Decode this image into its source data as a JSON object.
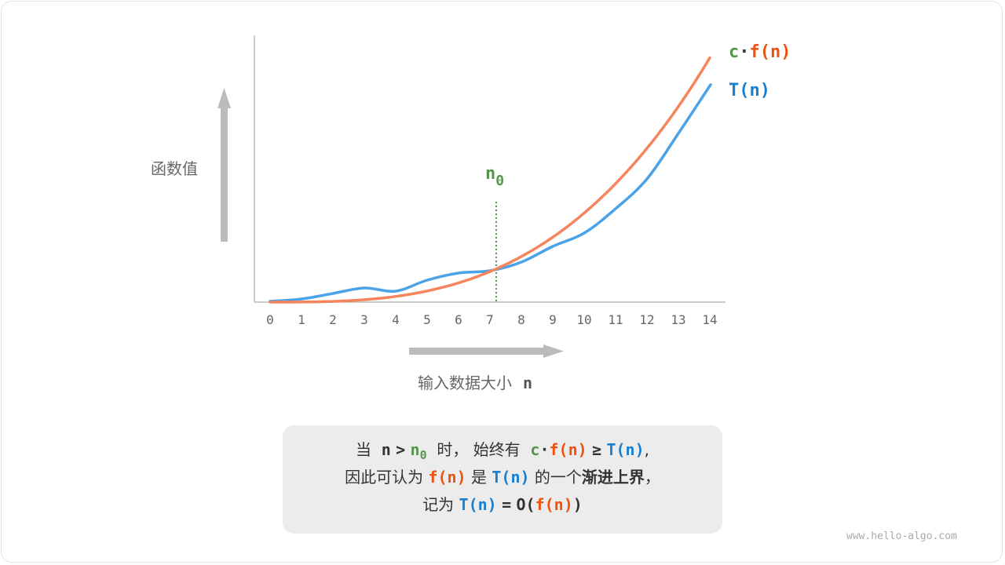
{
  "y_label": "函数值",
  "x_label": "输入数据大小",
  "x_var": "n",
  "x_ticks": [
    "0",
    "1",
    "2",
    "3",
    "4",
    "5",
    "6",
    "7",
    "8",
    "9",
    "10",
    "11",
    "12",
    "13",
    "14"
  ],
  "n0_label": {
    "base": "n",
    "sub": "0"
  },
  "legend": {
    "cf_c": "c",
    "cf_dot": "·",
    "cf_f": "f(n)",
    "t": "T(n)"
  },
  "caption": {
    "l1_a": "当",
    "l1_n": "n",
    ">": ">",
    "l1_n0": "n",
    "l1_n0sub": "0",
    "l1_b": "时，",
    "l1_c": "始终有",
    "l1_cc": "c",
    "l1_dot": "·",
    "l1_f": "f(n)",
    "l1_ge": "≥",
    "l1_t": "T(n)",
    "l1_end": ",",
    "l2_a": "因此可认为",
    "l2_f": "f(n)",
    "l2_b": "是",
    "l2_t": "T(n)",
    "l2_c": "的一个",
    "l2_bold": "渐进上界",
    "l2_end": "，",
    "l3_a": "记为",
    "l3_t": "T(n)",
    "l3_eq": "=",
    "l3_o": "O(",
    "l3_f": "f(n)",
    "l3_close": ")"
  },
  "watermark": "www.hello-algo.com",
  "colors": {
    "cf_line": "#f6845c",
    "t_line": "#4aa3e8",
    "green": "#57954f",
    "orange_text": "#f0520e",
    "blue_text": "#1a7fce",
    "axis": "#bbbbbb"
  }
}
